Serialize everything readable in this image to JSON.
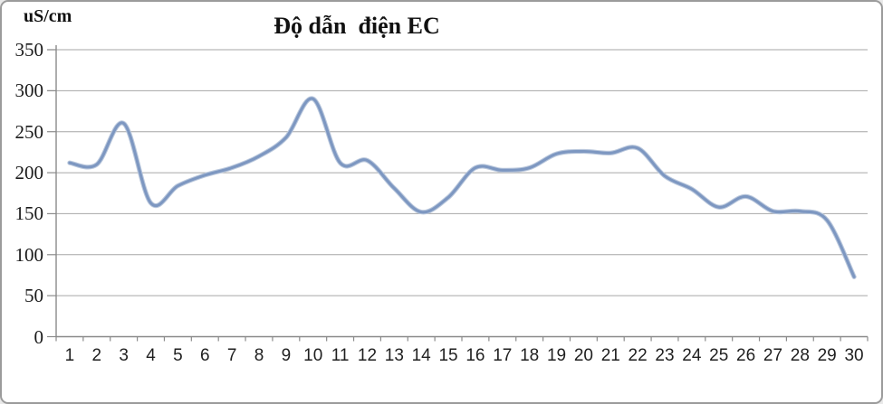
{
  "chart_data": {
    "type": "line",
    "title": "Độ dẫn  điện EC",
    "y_unit_label": "uS/cm",
    "categories": [
      "1",
      "2",
      "3",
      "4",
      "5",
      "6",
      "7",
      "8",
      "9",
      "10",
      "11",
      "12",
      "13",
      "14",
      "15",
      "16",
      "17",
      "18",
      "19",
      "20",
      "21",
      "22",
      "23",
      "24",
      "25",
      "26",
      "27",
      "28",
      "29",
      "30"
    ],
    "series": [
      {
        "name": "EC",
        "values": [
          212,
          210,
          260,
          163,
          184,
          197,
          206,
          220,
          243,
          290,
          212,
          215,
          181,
          152,
          170,
          206,
          203,
          206,
          223,
          226,
          224,
          230,
          196,
          180,
          158,
          171,
          153,
          153,
          142,
          73
        ]
      }
    ],
    "xlabel": "",
    "ylabel": "uS/cm",
    "ylim": [
      0,
      350
    ],
    "yticks": [
      0,
      50,
      100,
      150,
      200,
      250,
      300,
      350
    ],
    "grid": "horizontal",
    "legend": "none",
    "line_style": "smooth"
  },
  "colors": {
    "line": "#7d97c1",
    "line_halo": "#b9c7dc",
    "gridline": "#a6a6a6",
    "axis": "#8a8a8a",
    "text": "#1a1a1a",
    "border": "#9b9b9b",
    "background": "#ffffff"
  }
}
